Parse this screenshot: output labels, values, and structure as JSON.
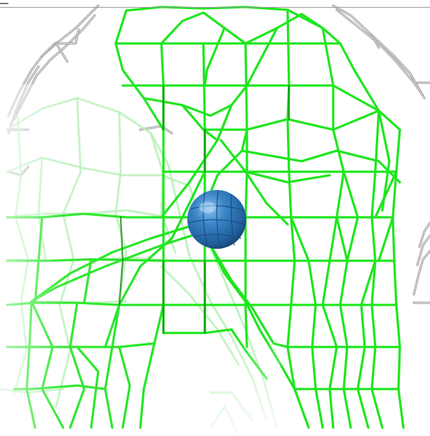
{
  "scene": {
    "background_color": "#ffffff",
    "mesh_color": "#1ee61e",
    "mesh_dark_color": "#0a8a0a",
    "mesh_faded_color": "#b6f0b6",
    "gray_mesh_color": "#9a9a9a",
    "gray_mesh_light_color": "#e2e2e2",
    "sphere_color": "#2f78b8",
    "sphere_highlight_color": "#7fb8e8",
    "sphere_shadow_color": "#163e66"
  }
}
